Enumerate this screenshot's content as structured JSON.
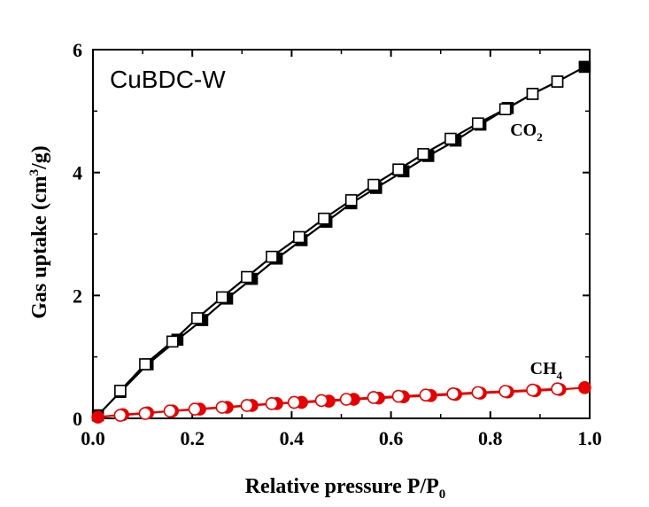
{
  "chart_data": {
    "type": "line",
    "title": "",
    "annotation": "CuBDC-W",
    "xlabel": "Relative pressure P/P",
    "xlabel_subscript": "0",
    "ylabel": "Gas uptake (cm",
    "ylabel_superscript": "3",
    "ylabel_tail": "/g)",
    "xlim": [
      0.0,
      1.0
    ],
    "ylim": [
      0,
      6
    ],
    "xticks": [
      "0.0",
      "0.2",
      "0.4",
      "0.6",
      "0.8",
      "1.0"
    ],
    "yticks": [
      "0",
      "2",
      "4",
      "6"
    ],
    "series": [
      {
        "name": "CO2",
        "label_main": "CO",
        "label_sub": "2",
        "color": "#000000",
        "marker": "square",
        "label_at": [
          0.84,
          4.6
        ],
        "adsorption": {
          "x": [
            0.01,
            0.055,
            0.11,
            0.17,
            0.22,
            0.27,
            0.32,
            0.37,
            0.42,
            0.47,
            0.52,
            0.57,
            0.625,
            0.675,
            0.73,
            0.78,
            0.835,
            0.885,
            0.935,
            0.99
          ],
          "y": [
            0.05,
            0.43,
            0.88,
            1.28,
            1.6,
            1.95,
            2.27,
            2.6,
            2.9,
            3.2,
            3.5,
            3.75,
            4.02,
            4.27,
            4.52,
            4.78,
            5.05,
            5.28,
            5.48,
            5.72
          ]
        },
        "desorption": {
          "x": [
            0.935,
            0.885,
            0.83,
            0.775,
            0.72,
            0.665,
            0.615,
            0.565,
            0.52,
            0.465,
            0.415,
            0.36,
            0.31,
            0.26,
            0.21,
            0.16,
            0.105,
            0.055
          ],
          "y": [
            5.48,
            5.28,
            5.03,
            4.8,
            4.55,
            4.3,
            4.05,
            3.8,
            3.55,
            3.25,
            2.95,
            2.63,
            2.3,
            1.97,
            1.63,
            1.25,
            0.88,
            0.45
          ]
        }
      },
      {
        "name": "CH4",
        "label_main": "CH",
        "label_sub": "4",
        "color": "#e60000",
        "marker": "circle",
        "label_at": [
          0.88,
          0.72
        ],
        "adsorption": {
          "x": [
            0.01,
            0.06,
            0.11,
            0.16,
            0.215,
            0.27,
            0.32,
            0.37,
            0.42,
            0.475,
            0.525,
            0.575,
            0.625,
            0.68,
            0.73,
            0.78,
            0.835,
            0.89,
            0.94,
            0.99
          ],
          "y": [
            0.02,
            0.06,
            0.09,
            0.12,
            0.15,
            0.18,
            0.21,
            0.24,
            0.26,
            0.28,
            0.31,
            0.33,
            0.35,
            0.37,
            0.39,
            0.41,
            0.43,
            0.45,
            0.47,
            0.5
          ]
        },
        "desorption": {
          "x": [
            0.935,
            0.885,
            0.83,
            0.775,
            0.725,
            0.67,
            0.615,
            0.565,
            0.51,
            0.46,
            0.405,
            0.36,
            0.31,
            0.26,
            0.205,
            0.155,
            0.105,
            0.055
          ],
          "y": [
            0.48,
            0.46,
            0.44,
            0.42,
            0.4,
            0.38,
            0.36,
            0.34,
            0.31,
            0.29,
            0.26,
            0.24,
            0.21,
            0.18,
            0.15,
            0.12,
            0.08,
            0.05
          ]
        }
      }
    ]
  }
}
